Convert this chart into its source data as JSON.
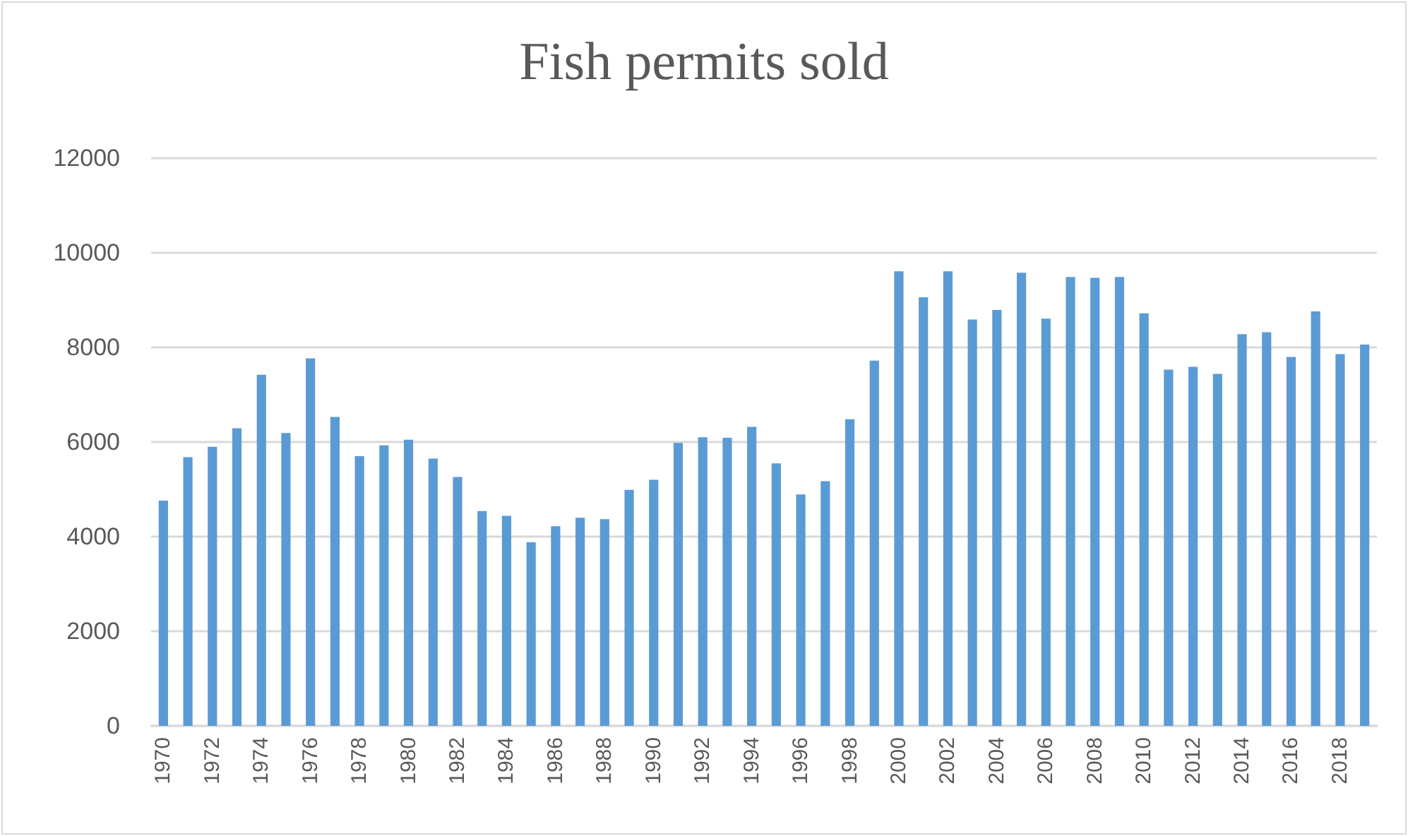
{
  "chart_data": {
    "type": "bar",
    "title": "Fish permits sold",
    "categories": [
      "1970",
      null,
      "1972",
      null,
      "1974",
      null,
      "1976",
      null,
      "1978",
      null,
      "1980",
      null,
      "1982",
      null,
      "1984",
      null,
      "1986",
      null,
      "1988",
      null,
      "1990",
      null,
      "1992",
      null,
      "1994",
      null,
      "1996",
      null,
      "1998",
      null,
      "2000",
      null,
      "2002",
      null,
      "2004",
      null,
      "2006",
      null,
      "2008",
      null,
      "2010",
      null,
      "2012",
      null,
      "2014",
      null,
      "2016",
      null,
      "2018",
      null
    ],
    "values": [
      4760,
      5680,
      5900,
      6290,
      7420,
      6190,
      7770,
      6530,
      5700,
      5930,
      6050,
      5650,
      5260,
      4540,
      4440,
      3880,
      4220,
      4400,
      4370,
      4990,
      5200,
      5980,
      6100,
      6090,
      6320,
      5550,
      4890,
      5170,
      6480,
      7720,
      9610,
      9060,
      9610,
      8590,
      8790,
      9580,
      8610,
      9490,
      9470,
      9490,
      8720,
      7530,
      7590,
      7440,
      8280,
      8320,
      7800,
      8760,
      7860,
      8060
    ],
    "color": "#5b9bd5",
    "ylim": [
      0,
      12000
    ],
    "yticks": [
      0,
      2000,
      4000,
      6000,
      8000,
      10000,
      12000
    ],
    "grid": "y"
  }
}
